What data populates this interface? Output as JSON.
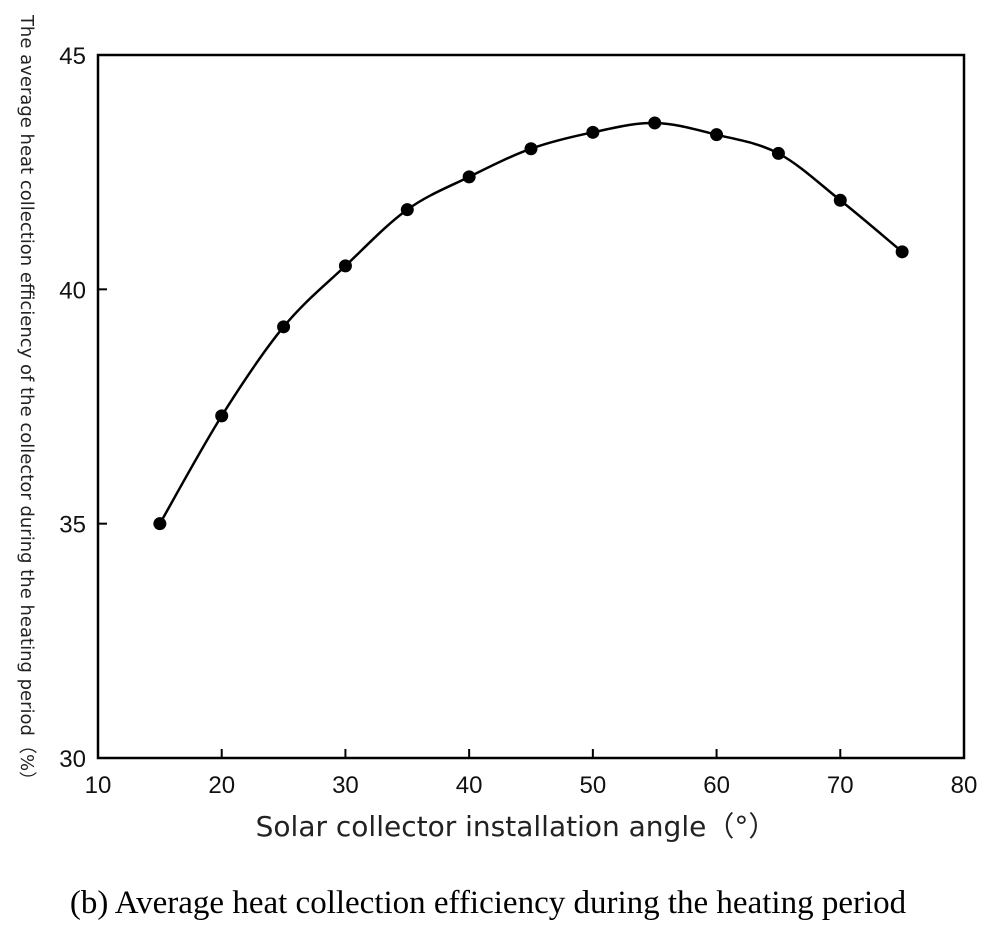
{
  "chart_data": {
    "type": "line",
    "caption": "(b) Average heat collection efficiency during the heating period",
    "xlabel": "Solar collector installation angle（°）",
    "ylabel": "The average heat collection efficiency of the collector during the heating period（%）",
    "xlim": [
      10,
      80
    ],
    "ylim": [
      30,
      45
    ],
    "x_ticks": [
      "10",
      "20",
      "30",
      "40",
      "50",
      "60",
      "70",
      "80"
    ],
    "y_ticks": [
      "30",
      "35",
      "40",
      "45"
    ],
    "grid": false,
    "legend": "none",
    "line_color": "#000000",
    "marker": "filled-circle",
    "series": [
      {
        "x": [
          15,
          20,
          25,
          30,
          35,
          40,
          45,
          50,
          55,
          60,
          65,
          70,
          75
        ],
        "y": [
          35.0,
          37.3,
          39.2,
          40.5,
          41.7,
          42.4,
          43.0,
          43.35,
          43.55,
          43.3,
          42.9,
          41.9,
          40.8
        ]
      }
    ]
  }
}
